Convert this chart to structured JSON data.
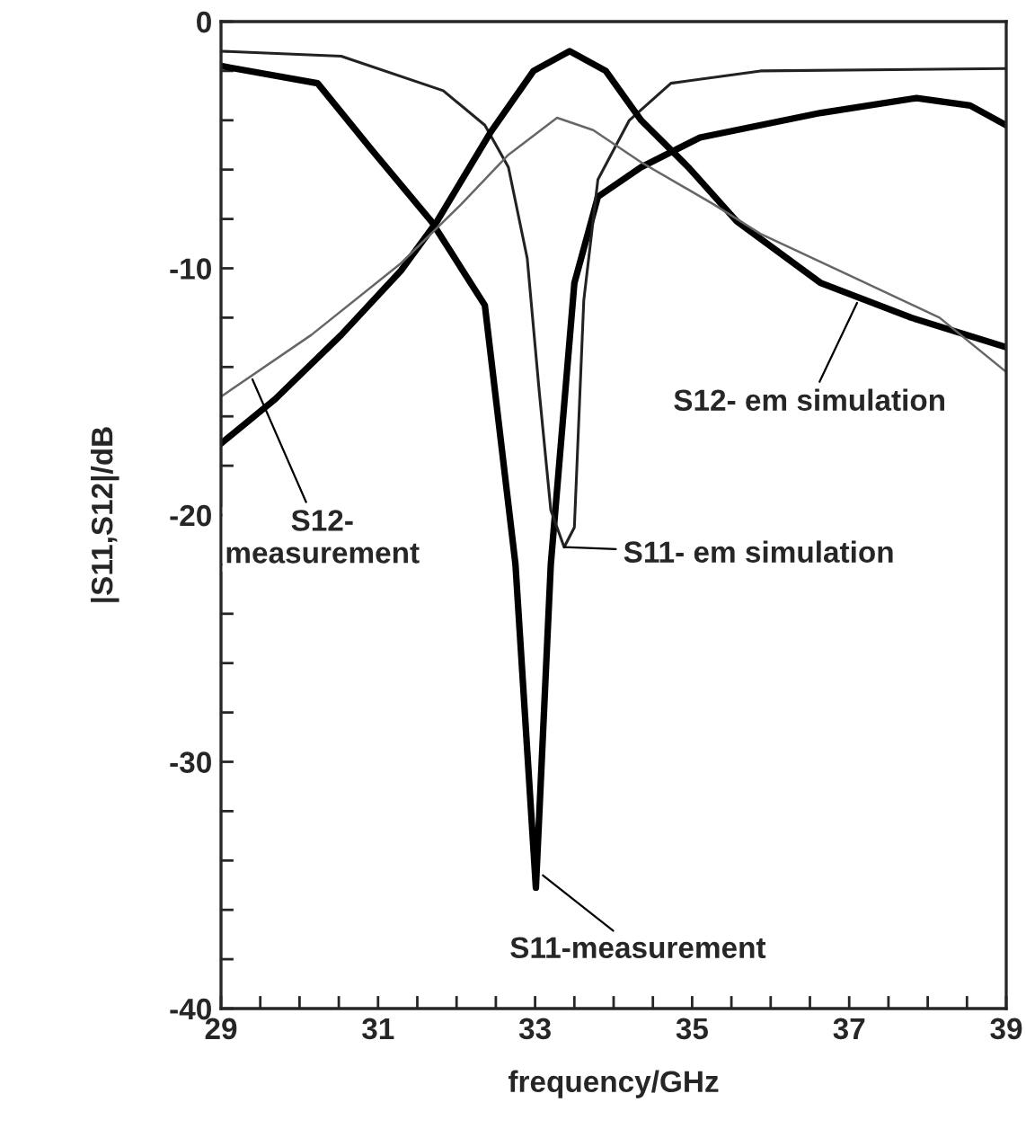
{
  "chart_data": {
    "type": "line",
    "xlabel": "frequency/GHz",
    "ylabel": "|S11,S12|/dB",
    "xlim": [
      29,
      39
    ],
    "ylim": [
      -40,
      0
    ],
    "xticks": [
      29,
      {
        "value": 29.5,
        "label": null
      },
      {
        "value": 30,
        "label": null
      },
      {
        "value": 30.5,
        "label": null
      },
      31,
      {
        "value": 31.5,
        "label": null
      },
      {
        "value": 32,
        "label": null
      },
      {
        "value": 32.5,
        "label": null
      },
      33,
      {
        "value": 33.5,
        "label": null
      },
      {
        "value": 34,
        "label": null
      },
      {
        "value": 34.5,
        "label": null
      },
      35,
      {
        "value": 35.5,
        "label": null
      },
      {
        "value": 36,
        "label": null
      },
      {
        "value": 36.5,
        "label": null
      },
      37,
      {
        "value": 37.5,
        "label": null
      },
      {
        "value": 38,
        "label": null
      },
      {
        "value": 38.5,
        "label": null
      },
      39
    ],
    "yticks": [
      0,
      {
        "value": -2,
        "label": null
      },
      {
        "value": -4,
        "label": null
      },
      {
        "value": -6,
        "label": null
      },
      {
        "value": -8,
        "label": null
      },
      -10,
      {
        "value": -12,
        "label": null
      },
      {
        "value": -14,
        "label": null
      },
      {
        "value": -16,
        "label": null
      },
      {
        "value": -18,
        "label": null
      },
      -20,
      {
        "value": -22,
        "label": null
      },
      {
        "value": -24,
        "label": null
      },
      {
        "value": -26,
        "label": null
      },
      {
        "value": -28,
        "label": null
      },
      -30,
      {
        "value": -32,
        "label": null
      },
      {
        "value": -34,
        "label": null
      },
      {
        "value": -36,
        "label": null
      },
      {
        "value": -38,
        "label": null
      },
      -40
    ],
    "grid": false,
    "legend": false,
    "marker": "none",
    "line_style": "solid",
    "series": [
      {
        "color": "#000000",
        "x": [
          29,
          30.23,
          30.92,
          31.68,
          32.36,
          32.75,
          33.01,
          33.2,
          33.5,
          33.8,
          34.35,
          35.1,
          36.64,
          37.86,
          38.54,
          39
        ],
        "values": [
          -1.8,
          -2.5,
          -5.2,
          -8.1,
          -11.5,
          -22,
          -35.1,
          -22,
          -10.6,
          -7.1,
          -5.9,
          -4.7,
          -3.7,
          -3.1,
          -3.4,
          -4.2
        ]
      },
      {
        "color": "#222222",
        "x": [
          29,
          30.53,
          31.83,
          32.36,
          32.66,
          32.9,
          33.05,
          33.2,
          33.37,
          33.5,
          33.62,
          33.8,
          34.2,
          34.73,
          35.87,
          39
        ],
        "values": [
          -1.2,
          -1.4,
          -2.8,
          -4.2,
          -5.9,
          -9.6,
          -14.9,
          -19.8,
          -21.3,
          -20.5,
          -11.3,
          -6.4,
          -4.0,
          -2.5,
          -2.0,
          -1.9
        ]
      },
      {
        "color": "#000000",
        "x": [
          29,
          29.69,
          30.53,
          31.29,
          31.75,
          32.43,
          32.98,
          33.44,
          33.9,
          34.35,
          34.95,
          35.57,
          36.64,
          37.79,
          39
        ],
        "values": [
          -17.1,
          -15.3,
          -12.7,
          -10.1,
          -8.1,
          -4.5,
          -2.0,
          -1.2,
          -2.0,
          -4.0,
          -5.9,
          -8.1,
          -10.6,
          -12.0,
          -13.2
        ]
      },
      {
        "color": "#666666",
        "x": [
          29,
          30.15,
          31.29,
          32.06,
          32.66,
          33.28,
          33.74,
          34.35,
          35.27,
          35.87,
          37.01,
          38.15,
          39
        ],
        "values": [
          -15.2,
          -12.7,
          -9.8,
          -7.4,
          -5.4,
          -3.9,
          -4.4,
          -5.7,
          -7.4,
          -8.6,
          -10.3,
          -12.0,
          -14.2
        ]
      }
    ],
    "annotations": [
      {
        "text": "S12- em simulation",
        "x": 37.1,
        "y": -11.4
      },
      {
        "text": "S12-\nmeasurement",
        "x": 29.4,
        "y": -14.5
      },
      {
        "text": "S11- em simulation",
        "x": 33.37,
        "y": -21.3
      },
      {
        "text": "S11-measurement",
        "x": 33.1,
        "y": -34.6
      }
    ]
  }
}
